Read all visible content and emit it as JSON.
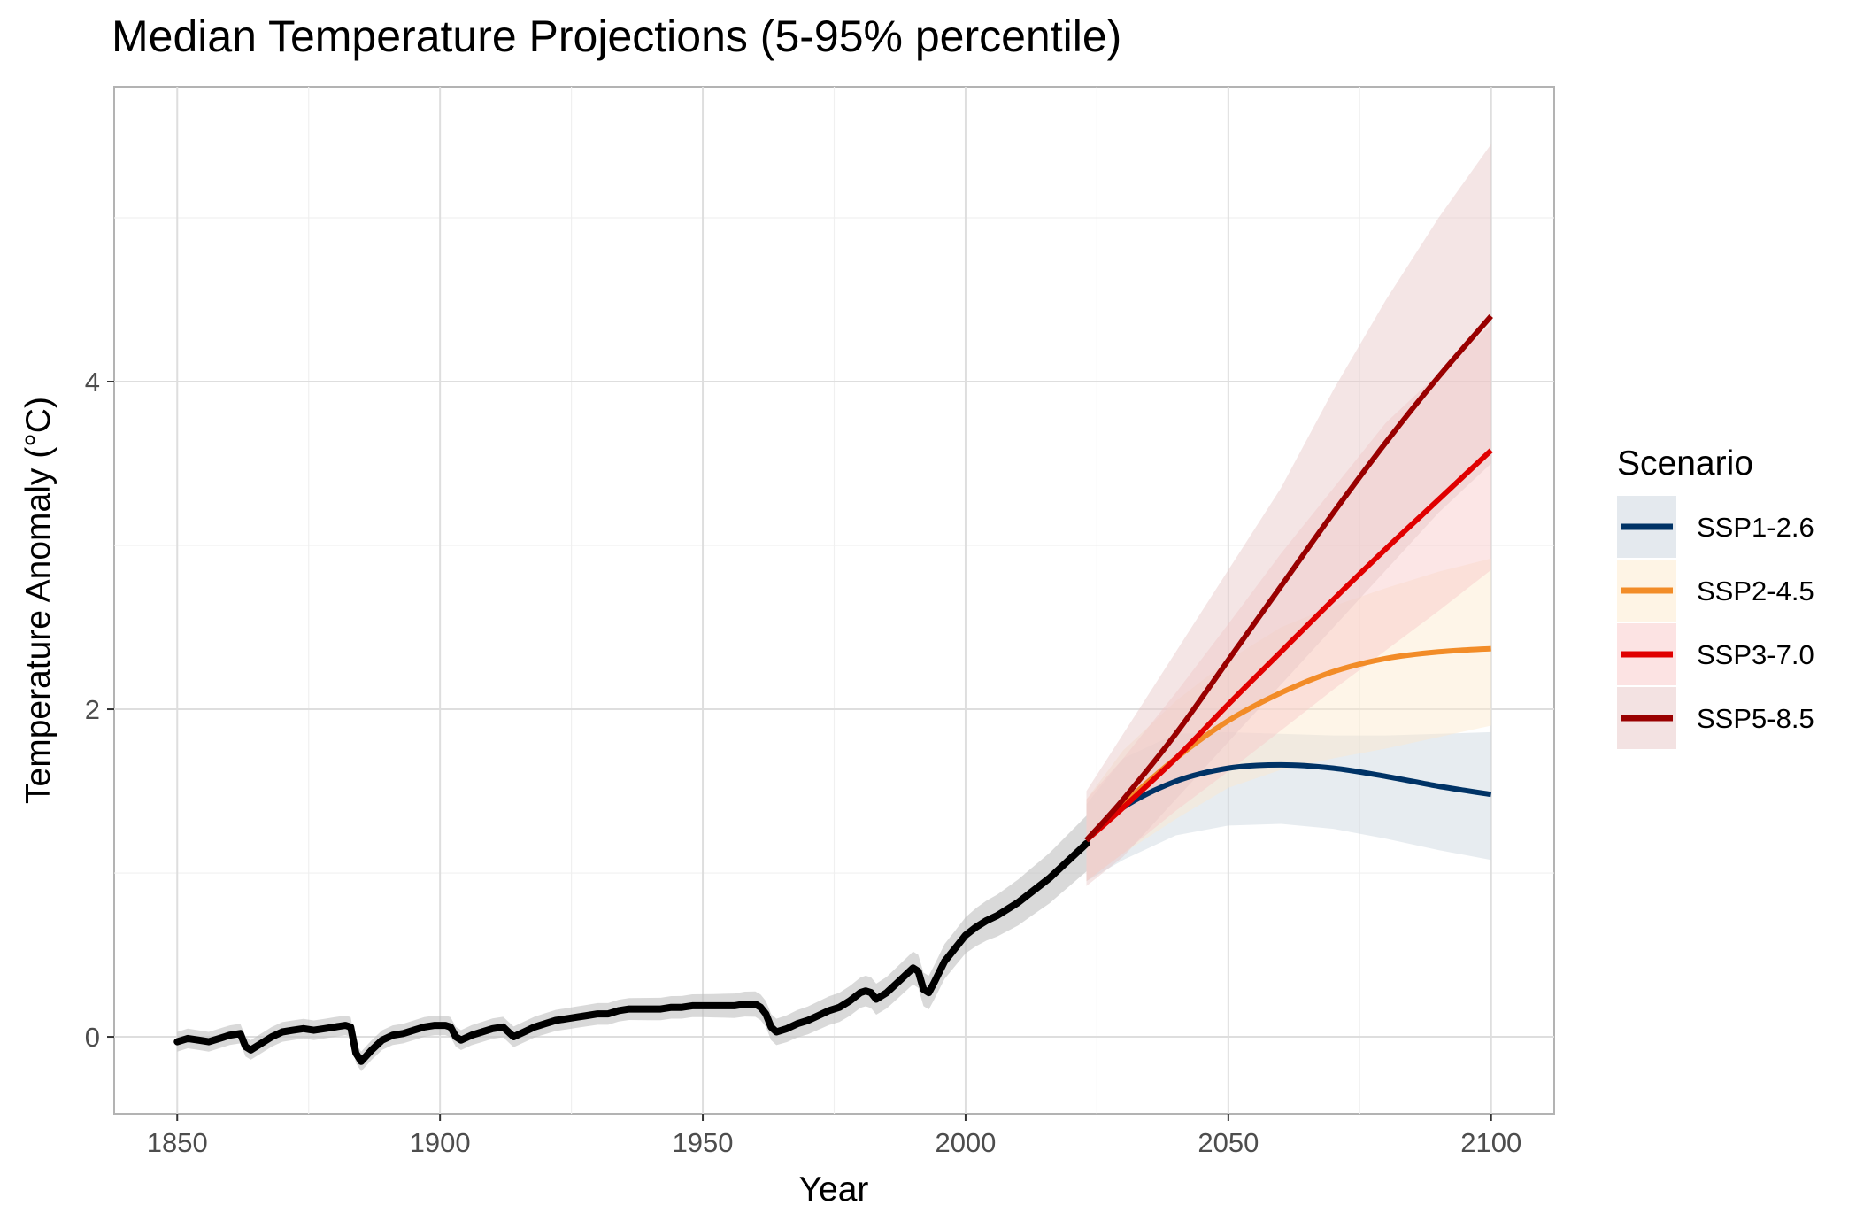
{
  "chart_data": {
    "type": "line",
    "title": "Median Temperature Projections (5-95% percentile)",
    "xlabel": "Year",
    "ylabel": "Temperature Anomaly (°C)",
    "xlim": [
      1838,
      2112
    ],
    "ylim": [
      -0.47,
      5.8
    ],
    "x_ticks": [
      1850,
      1900,
      1950,
      2000,
      2050,
      2100
    ],
    "y_ticks": [
      0,
      2,
      4
    ],
    "grid": true,
    "legend": {
      "title": "Scenario",
      "position": "right"
    },
    "historical": {
      "color": "#000000",
      "band_color": "#bfbfbf",
      "points": [
        [
          1850,
          -0.03
        ],
        [
          1852,
          -0.01
        ],
        [
          1854,
          -0.02
        ],
        [
          1856,
          -0.03
        ],
        [
          1858,
          -0.01
        ],
        [
          1860,
          0.01
        ],
        [
          1862,
          0.02
        ],
        [
          1863,
          -0.06
        ],
        [
          1864,
          -0.08
        ],
        [
          1866,
          -0.04
        ],
        [
          1868,
          0.0
        ],
        [
          1870,
          0.03
        ],
        [
          1872,
          0.04
        ],
        [
          1874,
          0.05
        ],
        [
          1876,
          0.04
        ],
        [
          1878,
          0.05
        ],
        [
          1880,
          0.06
        ],
        [
          1882,
          0.07
        ],
        [
          1883,
          0.06
        ],
        [
          1884,
          -0.1
        ],
        [
          1885,
          -0.15
        ],
        [
          1887,
          -0.08
        ],
        [
          1889,
          -0.02
        ],
        [
          1891,
          0.01
        ],
        [
          1893,
          0.02
        ],
        [
          1895,
          0.04
        ],
        [
          1897,
          0.06
        ],
        [
          1899,
          0.07
        ],
        [
          1901,
          0.07
        ],
        [
          1902,
          0.06
        ],
        [
          1903,
          0.0
        ],
        [
          1904,
          -0.02
        ],
        [
          1906,
          0.01
        ],
        [
          1908,
          0.03
        ],
        [
          1910,
          0.05
        ],
        [
          1912,
          0.06
        ],
        [
          1914,
          0.0
        ],
        [
          1916,
          0.03
        ],
        [
          1918,
          0.06
        ],
        [
          1920,
          0.08
        ],
        [
          1922,
          0.1
        ],
        [
          1924,
          0.11
        ],
        [
          1926,
          0.12
        ],
        [
          1928,
          0.13
        ],
        [
          1930,
          0.14
        ],
        [
          1932,
          0.14
        ],
        [
          1934,
          0.16
        ],
        [
          1936,
          0.17
        ],
        [
          1938,
          0.17
        ],
        [
          1940,
          0.17
        ],
        [
          1942,
          0.17
        ],
        [
          1944,
          0.18
        ],
        [
          1946,
          0.18
        ],
        [
          1948,
          0.19
        ],
        [
          1950,
          0.19
        ],
        [
          1952,
          0.19
        ],
        [
          1954,
          0.19
        ],
        [
          1956,
          0.19
        ],
        [
          1958,
          0.2
        ],
        [
          1960,
          0.2
        ],
        [
          1961,
          0.18
        ],
        [
          1962,
          0.14
        ],
        [
          1963,
          0.06
        ],
        [
          1964,
          0.03
        ],
        [
          1966,
          0.05
        ],
        [
          1968,
          0.08
        ],
        [
          1970,
          0.1
        ],
        [
          1972,
          0.13
        ],
        [
          1974,
          0.16
        ],
        [
          1976,
          0.18
        ],
        [
          1978,
          0.22
        ],
        [
          1980,
          0.27
        ],
        [
          1981,
          0.28
        ],
        [
          1982,
          0.27
        ],
        [
          1983,
          0.23
        ],
        [
          1985,
          0.27
        ],
        [
          1987,
          0.33
        ],
        [
          1989,
          0.39
        ],
        [
          1990,
          0.42
        ],
        [
          1991,
          0.4
        ],
        [
          1992,
          0.29
        ],
        [
          1993,
          0.27
        ],
        [
          1994,
          0.33
        ],
        [
          1996,
          0.46
        ],
        [
          1998,
          0.54
        ],
        [
          2000,
          0.62
        ],
        [
          2002,
          0.67
        ],
        [
          2004,
          0.71
        ],
        [
          2006,
          0.74
        ],
        [
          2008,
          0.78
        ],
        [
          2010,
          0.82
        ],
        [
          2012,
          0.87
        ],
        [
          2014,
          0.92
        ],
        [
          2016,
          0.97
        ],
        [
          2018,
          1.03
        ],
        [
          2020,
          1.09
        ],
        [
          2022,
          1.15
        ],
        [
          2023,
          1.18
        ]
      ],
      "band_half_width": [
        [
          1850,
          0.06
        ],
        [
          1900,
          0.06
        ],
        [
          1950,
          0.07
        ],
        [
          1990,
          0.1
        ],
        [
          2000,
          0.11
        ],
        [
          2010,
          0.14
        ],
        [
          2023,
          0.17
        ]
      ]
    },
    "series": [
      {
        "name": "SSP1-2.6",
        "color": "#003366",
        "band_color": "#c9d4de",
        "x": [
          2023,
          2030,
          2040,
          2050,
          2060,
          2070,
          2080,
          2090,
          2100
        ],
        "median": [
          1.2,
          1.4,
          1.56,
          1.64,
          1.66,
          1.64,
          1.59,
          1.53,
          1.48
        ],
        "lower": [
          0.95,
          1.08,
          1.23,
          1.29,
          1.3,
          1.27,
          1.21,
          1.14,
          1.08
        ],
        "upper": [
          1.42,
          1.7,
          1.85,
          1.86,
          1.85,
          1.84,
          1.84,
          1.85,
          1.86
        ]
      },
      {
        "name": "SSP2-4.5",
        "color": "#f28c28",
        "band_color": "#fde9cc",
        "x": [
          2023,
          2030,
          2040,
          2050,
          2060,
          2070,
          2080,
          2090,
          2100
        ],
        "median": [
          1.2,
          1.42,
          1.7,
          1.93,
          2.1,
          2.23,
          2.31,
          2.35,
          2.37
        ],
        "lower": [
          0.95,
          1.12,
          1.33,
          1.52,
          1.63,
          1.7,
          1.76,
          1.83,
          1.9
        ],
        "upper": [
          1.45,
          1.75,
          2.05,
          2.3,
          2.5,
          2.63,
          2.74,
          2.84,
          2.92
        ]
      },
      {
        "name": "SSP3-7.0",
        "color": "#e00000",
        "band_color": "#f9c8c8",
        "x": [
          2023,
          2030,
          2040,
          2050,
          2060,
          2070,
          2080,
          2090,
          2100
        ],
        "median": [
          1.2,
          1.4,
          1.7,
          2.03,
          2.35,
          2.67,
          2.98,
          3.28,
          3.58
        ],
        "lower": [
          0.95,
          1.12,
          1.38,
          1.62,
          1.87,
          2.12,
          2.36,
          2.6,
          2.85
        ],
        "upper": [
          1.45,
          1.7,
          2.1,
          2.52,
          2.95,
          3.35,
          3.75,
          4.05,
          4.35
        ]
      },
      {
        "name": "SSP5-8.5",
        "color": "#990000",
        "band_color": "#e7c6c6",
        "x": [
          2023,
          2030,
          2040,
          2050,
          2060,
          2070,
          2080,
          2090,
          2100
        ],
        "median": [
          1.2,
          1.45,
          1.85,
          2.3,
          2.75,
          3.2,
          3.63,
          4.03,
          4.4
        ],
        "lower": [
          0.92,
          1.1,
          1.45,
          1.8,
          2.15,
          2.5,
          2.85,
          3.2,
          3.5
        ],
        "upper": [
          1.5,
          1.85,
          2.35,
          2.85,
          3.35,
          3.95,
          4.5,
          5.0,
          5.45
        ]
      }
    ]
  }
}
